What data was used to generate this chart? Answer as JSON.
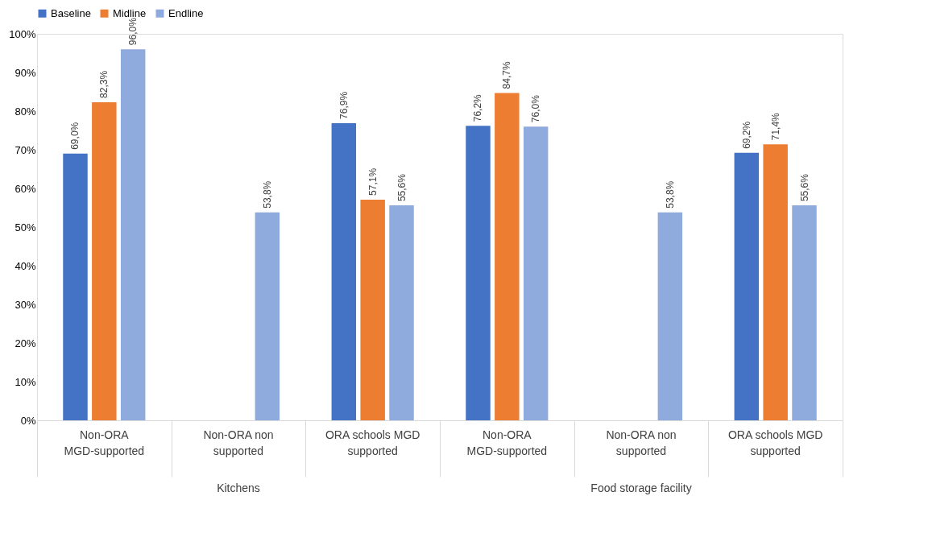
{
  "chart_data": {
    "type": "bar",
    "categories": [
      "Non-ORA MGD-supported",
      "Non-ORA non supported",
      "ORA schools MGD supported",
      "Non-ORA MGD-supported",
      "Non-ORA non supported",
      "ORA schools MGD supported"
    ],
    "series": [
      {
        "name": "Baseline",
        "color": "#4472c4",
        "values": [
          69.0,
          null,
          76.9,
          76.2,
          null,
          69.2
        ],
        "value_labels": [
          "69,0%",
          null,
          "76,9%",
          "76,2%",
          null,
          "69,2%"
        ]
      },
      {
        "name": "Midline",
        "color": "#ed7d31",
        "values": [
          82.3,
          null,
          57.1,
          84.7,
          null,
          71.4
        ],
        "value_labels": [
          "82,3%",
          null,
          "57,1%",
          "84,7%",
          null,
          "71,4%"
        ]
      },
      {
        "name": "Endline",
        "color": "#8faadc",
        "values": [
          96.0,
          53.8,
          55.6,
          76.0,
          53.8,
          55.6
        ],
        "value_labels": [
          "96,0%",
          "53,8%",
          "55,6%",
          "76,0%",
          "53,8%",
          "55,6%"
        ]
      }
    ],
    "annotations": [
      "Kitchens",
      "Food storage facility"
    ],
    "ylim": [
      0,
      100
    ],
    "yticks": [
      {
        "value": 0,
        "label": "0%"
      },
      {
        "value": 10,
        "label": "10%"
      },
      {
        "value": 20,
        "label": "20%"
      },
      {
        "value": 30,
        "label": "30%"
      },
      {
        "value": 40,
        "label": "40%"
      },
      {
        "value": 50,
        "label": "50%"
      },
      {
        "value": 60,
        "label": "60%"
      },
      {
        "value": 70,
        "label": "70%"
      },
      {
        "value": 80,
        "label": "80%"
      },
      {
        "value": 90,
        "label": "90%"
      },
      {
        "value": 100,
        "label": "100%"
      }
    ],
    "grid": false,
    "legend": "top"
  }
}
